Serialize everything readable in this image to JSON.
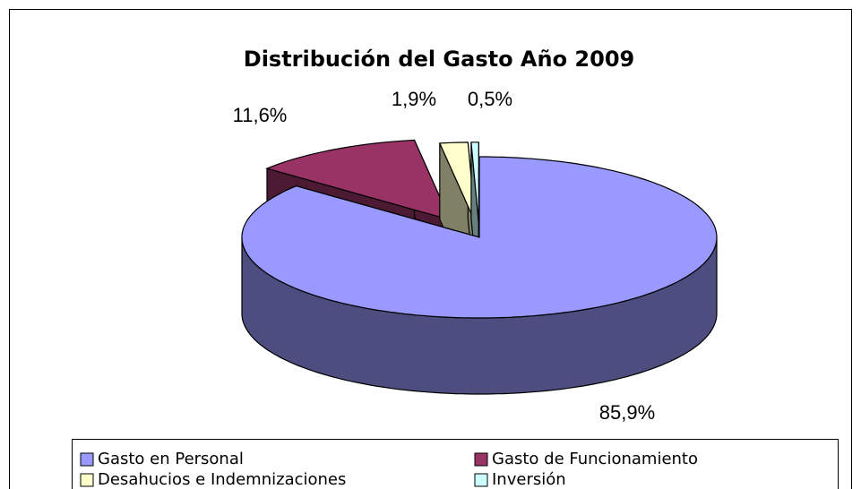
{
  "chart_data": {
    "type": "pie",
    "title": "Distribución del Gasto Año 2009",
    "categories": [
      "Gasto en Personal",
      "Gasto de Funcionamiento",
      "Desahucios e Indemnizaciones",
      "Inversión"
    ],
    "values": [
      85.9,
      11.6,
      1.9,
      0.5
    ],
    "value_labels": [
      "85,9%",
      "11,6%",
      "1,9%",
      "0,5%"
    ],
    "colors": [
      "#9999ff",
      "#993366",
      "#ffffcc",
      "#ccffff"
    ]
  }
}
